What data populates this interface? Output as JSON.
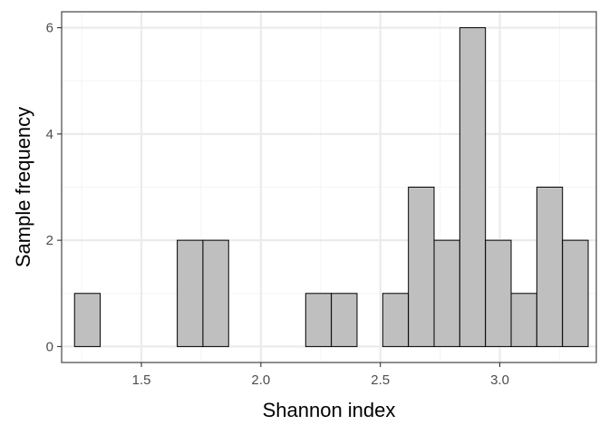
{
  "chart_data": {
    "type": "bar",
    "subtype": "histogram",
    "title": "",
    "xlabel": "Shannon index",
    "ylabel": "Sample frequency",
    "xlim": [
      1.166,
      3.404
    ],
    "ylim": [
      -0.3,
      6.3
    ],
    "x_ticks": [
      1.5,
      2.0,
      2.5,
      3.0
    ],
    "x_tick_labels": [
      "1.5",
      "2.0",
      "2.5",
      "3.0"
    ],
    "y_ticks": [
      0,
      2,
      4,
      6
    ],
    "y_tick_labels": [
      "0",
      "2",
      "4",
      "6"
    ],
    "bin_width": 0.1075,
    "bins": [
      {
        "x0": 1.22,
        "x1": 1.3275,
        "count": 1
      },
      {
        "x0": 1.3275,
        "x1": 1.435,
        "count": 0
      },
      {
        "x0": 1.435,
        "x1": 1.5425,
        "count": 0
      },
      {
        "x0": 1.5425,
        "x1": 1.65,
        "count": 0
      },
      {
        "x0": 1.65,
        "x1": 1.7575,
        "count": 2
      },
      {
        "x0": 1.7575,
        "x1": 1.865,
        "count": 2
      },
      {
        "x0": 1.865,
        "x1": 1.9725,
        "count": 0
      },
      {
        "x0": 1.9725,
        "x1": 2.08,
        "count": 0
      },
      {
        "x0": 2.08,
        "x1": 2.1875,
        "count": 0
      },
      {
        "x0": 2.1875,
        "x1": 2.295,
        "count": 1
      },
      {
        "x0": 2.295,
        "x1": 2.4025,
        "count": 1
      },
      {
        "x0": 2.4025,
        "x1": 2.51,
        "count": 0
      },
      {
        "x0": 2.51,
        "x1": 2.6175,
        "count": 1
      },
      {
        "x0": 2.6175,
        "x1": 2.725,
        "count": 3
      },
      {
        "x0": 2.725,
        "x1": 2.8325,
        "count": 2
      },
      {
        "x0": 2.8325,
        "x1": 2.94,
        "count": 6
      },
      {
        "x0": 2.94,
        "x1": 3.0475,
        "count": 2
      },
      {
        "x0": 3.0475,
        "x1": 3.155,
        "count": 1
      },
      {
        "x0": 3.155,
        "x1": 3.2625,
        "count": 3
      },
      {
        "x0": 3.2625,
        "x1": 3.37,
        "count": 2
      }
    ],
    "grid": true,
    "legend": "none",
    "colors": {
      "bar_fill": "#bfbfbf",
      "bar_stroke": "#000000",
      "grid_major": "#ebebeb",
      "grid_minor": "#f5f5f5",
      "panel_border": "#333333",
      "tick_text": "#4d4d4d"
    }
  }
}
